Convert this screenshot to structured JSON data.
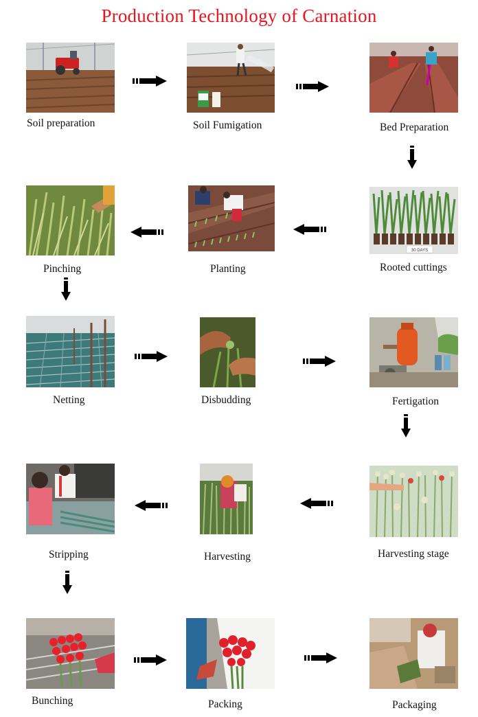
{
  "title": "Production Technology of Carnation",
  "steps": [
    {
      "label": "Soil preparation"
    },
    {
      "label": "Soil Fumigation"
    },
    {
      "label": "Bed Preparation"
    },
    {
      "label": "Rooted cuttings"
    },
    {
      "label": "Planting"
    },
    {
      "label": "Pinching"
    },
    {
      "label": "Netting"
    },
    {
      "label": "Disbudding"
    },
    {
      "label": "Fertigation"
    },
    {
      "label": "Harvesting stage"
    },
    {
      "label": "Harvesting"
    },
    {
      "label": "Stripping"
    },
    {
      "label": "Bunching"
    },
    {
      "label": "Packing"
    },
    {
      "label": "Packaging"
    }
  ],
  "photo_tag": "30 DAYS"
}
